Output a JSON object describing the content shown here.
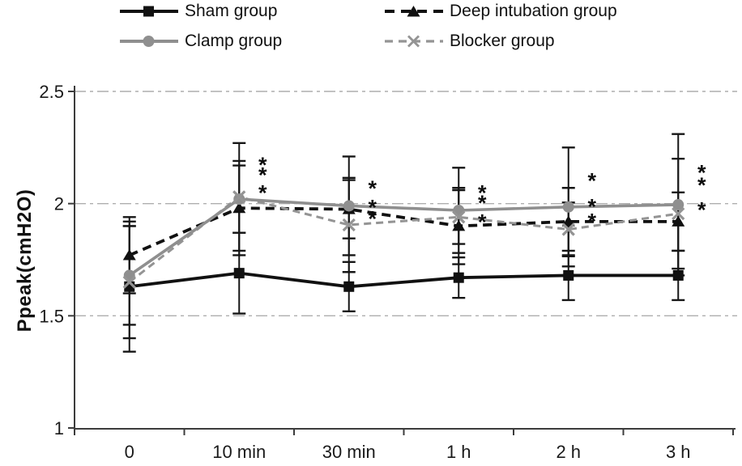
{
  "figure": {
    "ylabel": "Ppeak(cmH2O)"
  },
  "colors": {
    "black": "#111111",
    "gray": "#8f8f8f",
    "blocker_gray": "#949494",
    "grid": "#aeaeae",
    "axis": "#3c3c3c",
    "error_bar": "#161616",
    "text": "#1a1a1a",
    "star": "#0d0d0d"
  },
  "chart_data": {
    "type": "line",
    "title": "",
    "xlabel": "",
    "ylabel": "Ppeak(cmH2O)",
    "categories": [
      "0",
      "10 min",
      "30 min",
      "1 h",
      "2 h",
      "3 h"
    ],
    "ylim": [
      1,
      2.5
    ],
    "yticks": [
      {
        "v": 2.5,
        "label": "2.5"
      },
      {
        "v": 2.0,
        "label": "2"
      },
      {
        "v": 1.5,
        "label": "1.5"
      },
      {
        "v": 1.0,
        "label": "1"
      }
    ],
    "gridlines": [
      2.5,
      2.0,
      1.5
    ],
    "grid_style": "horizontal dash-dot",
    "legend_position": "top",
    "series": [
      {
        "name": "Sham group",
        "marker": "square",
        "line": "solid",
        "color": "#111111",
        "values": [
          1.63,
          1.69,
          1.63,
          1.67,
          1.68,
          1.68
        ],
        "errors": [
          0.29,
          0.18,
          0.11,
          0.09,
          0.11,
          0.11
        ]
      },
      {
        "name": "Deep intubation group",
        "marker": "triangle",
        "line": "dashed",
        "color": "#111111",
        "values": [
          1.77,
          1.98,
          1.975,
          1.9,
          1.92,
          1.92
        ],
        "errors": [
          0.17,
          0.19,
          0.13,
          0.17,
          0.15,
          0.13
        ]
      },
      {
        "name": "Clamp group",
        "marker": "circle",
        "line": "solid",
        "color": "#8f8f8f",
        "values": [
          1.68,
          2.02,
          1.99,
          1.97,
          1.985,
          1.995
        ],
        "errors": [
          0.22,
          0.25,
          0.22,
          0.19,
          0.265,
          0.315
        ]
      },
      {
        "name": "Blocker group",
        "marker": "x",
        "line": "dashed",
        "color": "#949494",
        "values": [
          1.65,
          2.03,
          1.905,
          1.94,
          1.885,
          1.955
        ],
        "errors": [
          0.25,
          0.16,
          0.21,
          0.12,
          0.12,
          0.245
        ]
      }
    ],
    "annotations": [
      {
        "category": "10 min",
        "value": 2.19,
        "text": "*"
      },
      {
        "category": "10 min",
        "value": 2.145,
        "text": "*"
      },
      {
        "category": "10 min",
        "value": 2.065,
        "text": "*"
      },
      {
        "category": "30 min",
        "value": 2.085,
        "text": "*"
      },
      {
        "category": "30 min",
        "value": 2.0,
        "text": "*"
      },
      {
        "category": "30 min",
        "value": 1.95,
        "text": "*"
      },
      {
        "category": "1 h",
        "value": 2.065,
        "text": "*"
      },
      {
        "category": "1 h",
        "value": 2.02,
        "text": "*"
      },
      {
        "category": "1 h",
        "value": 1.935,
        "text": "*"
      },
      {
        "category": "2 h",
        "value": 2.12,
        "text": "*"
      },
      {
        "category": "2 h",
        "value": 2.005,
        "text": "*"
      },
      {
        "category": "2 h",
        "value": 1.94,
        "text": "*"
      },
      {
        "category": "3 h",
        "value": 2.155,
        "text": "*"
      },
      {
        "category": "3 h",
        "value": 2.1,
        "text": "*"
      },
      {
        "category": "3 h",
        "value": 1.99,
        "text": "*"
      }
    ]
  }
}
